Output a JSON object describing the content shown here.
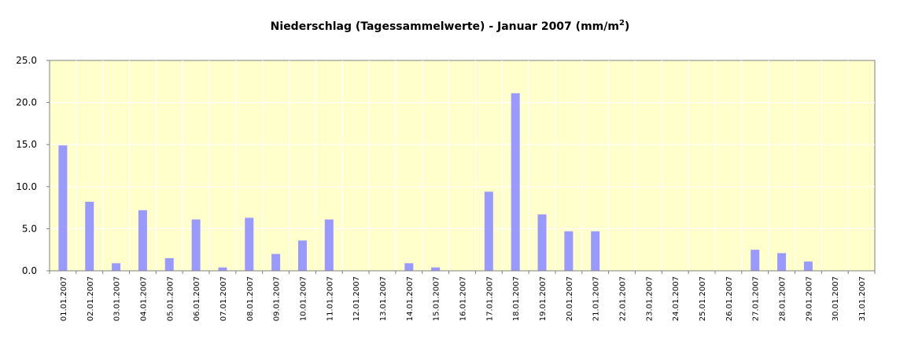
{
  "chart_data": {
    "type": "bar",
    "title": "Niederschlag (Tagessammelwerte) - Januar 2007 (mm/m",
    "title_superscript": "2",
    "title_close": ")",
    "xlabel": "",
    "ylabel": "",
    "ylim": [
      0,
      25
    ],
    "yticks": [
      "0.0",
      "5.0",
      "10.0",
      "15.0",
      "20.0",
      "25.0"
    ],
    "grid": true,
    "legend": "none",
    "categories": [
      "01.01.2007",
      "02.01.2007",
      "03.01.2007",
      "04.01.2007",
      "05.01.2007",
      "06.01.2007",
      "07.01.2007",
      "08.01.2007",
      "09.01.2007",
      "10.01.2007",
      "11.01.2007",
      "12.01.2007",
      "13.01.2007",
      "14.01.2007",
      "15.01.2007",
      "16.01.2007",
      "17.01.2007",
      "18.01.2007",
      "19.01.2007",
      "20.01.2007",
      "21.01.2007",
      "22.01.2007",
      "23.01.2007",
      "24.01.2007",
      "25.01.2007",
      "26.01.2007",
      "27.01.2007",
      "28.01.2007",
      "29.01.2007",
      "30.01.2007",
      "31.01.2007"
    ],
    "values": [
      14.9,
      8.2,
      0.9,
      7.2,
      1.5,
      6.1,
      0.4,
      6.3,
      2.0,
      3.6,
      6.1,
      0,
      0,
      0.9,
      0.4,
      0,
      9.4,
      21.1,
      6.7,
      4.7,
      4.7,
      0,
      0,
      0,
      0,
      0,
      2.5,
      2.1,
      1.1,
      0,
      0
    ],
    "colors": {
      "bar": "#9999ff",
      "plot_bg": "#ffffcc",
      "grid": "#ffffff",
      "axis": "#808080"
    }
  }
}
